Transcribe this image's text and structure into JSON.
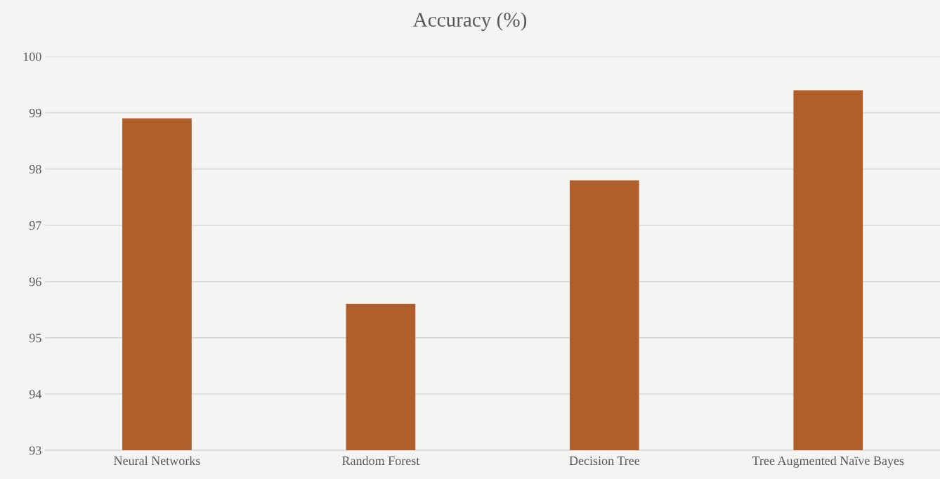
{
  "chart_data": {
    "type": "bar",
    "title": "Accuracy (%)",
    "categories": [
      "Neural Networks",
      "Random Forest",
      "Decision Tree",
      "Tree Augmented Naïve Bayes"
    ],
    "values": [
      98.9,
      95.6,
      97.8,
      99.4
    ],
    "color": "#b05f2b",
    "ylim": [
      93,
      100
    ],
    "yticks": [
      93,
      94,
      95,
      96,
      97,
      98,
      99,
      100
    ],
    "grid": "y"
  }
}
